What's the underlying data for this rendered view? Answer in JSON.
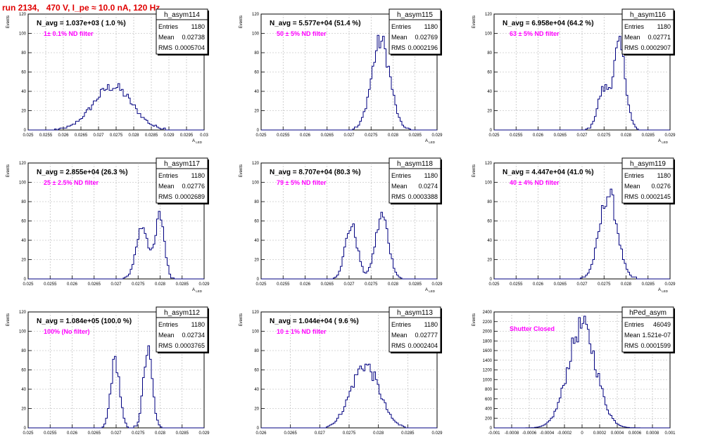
{
  "page_title": "run 2134,   470 V, I_pe ≈ 10.0 nA, 120 Hz",
  "colors": {
    "hist": "#000080",
    "annot": "#ff00ff",
    "title": "#e00000",
    "grid": "#b0b0b0"
  },
  "chart_data": [
    {
      "type": "histogram",
      "name": "h_asym114",
      "ylabel": "Events",
      "xlabel": "A_LED",
      "xlim": [
        0.025,
        0.03
      ],
      "ylim": [
        0,
        120
      ],
      "xticks": [
        "0.025",
        "0.0255",
        "0.026",
        "0.0265",
        "0.027",
        "0.0275",
        "0.028",
        "0.0285",
        "0.029",
        "0.0295",
        "0.03"
      ],
      "yticks": [
        "0",
        "20",
        "40",
        "60",
        "80",
        "100",
        "120"
      ],
      "navg": "N_avg = 1.037e+03 ( 1.0 %)",
      "note": "1± 0.1% ND filter",
      "stats": {
        "entries": "1180",
        "mean": "0.02738",
        "rms": "0.0005704"
      },
      "shape": {
        "peaks": [
          [
            0.0274,
            0.00055,
            45
          ]
        ]
      }
    },
    {
      "type": "histogram",
      "name": "h_asym115",
      "ylabel": "Events",
      "xlabel": "A_LED",
      "xlim": [
        0.025,
        0.029
      ],
      "ylim": [
        0,
        120
      ],
      "xticks": [
        "0.025",
        "0.0255",
        "0.026",
        "0.0265",
        "0.027",
        "0.0275",
        "0.028",
        "0.0285",
        "0.029"
      ],
      "yticks": [
        "0",
        "20",
        "40",
        "60",
        "80",
        "100",
        "120"
      ],
      "navg": "N_avg = 5.577e+04 (51.4 %)",
      "note": "50 ± 5% ND filter",
      "stats": {
        "entries": "1180",
        "mean": "0.02769",
        "rms": "0.0002196"
      },
      "shape": {
        "peaks": [
          [
            0.02772,
            0.00021,
            92
          ]
        ]
      }
    },
    {
      "type": "histogram",
      "name": "h_asym116",
      "ylabel": "Events",
      "xlabel": "A_LED",
      "xlim": [
        0.025,
        0.029
      ],
      "ylim": [
        0,
        120
      ],
      "xticks": [
        "0.025",
        "0.0255",
        "0.026",
        "0.0265",
        "0.027",
        "0.0275",
        "0.028",
        "0.0285",
        "0.029"
      ],
      "yticks": [
        "0",
        "20",
        "40",
        "60",
        "80",
        "100",
        "120"
      ],
      "navg": "N_avg = 6.958e+04 (64.2 %)",
      "note": "63 ± 5% ND filter",
      "stats": {
        "entries": "1180",
        "mean": "0.02771",
        "rms": "0.0002907"
      },
      "shape": {
        "peaks": [
          [
            0.02748,
            0.00013,
            40
          ],
          [
            0.02785,
            0.00014,
            86
          ]
        ]
      }
    },
    {
      "type": "histogram",
      "name": "h_asym117",
      "ylabel": "Events",
      "xlabel": "A_LED",
      "xlim": [
        0.025,
        0.029
      ],
      "ylim": [
        0,
        120
      ],
      "xticks": [
        "0.025",
        "0.0255",
        "0.026",
        "0.0265",
        "0.027",
        "0.0275",
        "0.028",
        "0.0285",
        "0.029"
      ],
      "yticks": [
        "0",
        "20",
        "40",
        "60",
        "80",
        "100",
        "120"
      ],
      "navg": "N_avg = 2.855e+04 (26.3 %)",
      "note": "25 ± 2.5% ND filter",
      "stats": {
        "entries": "1180",
        "mean": "0.02776",
        "rms": "0.0002689"
      },
      "shape": {
        "peaks": [
          [
            0.0276,
            0.00014,
            55
          ],
          [
            0.028,
            0.0001,
            65
          ]
        ]
      }
    },
    {
      "type": "histogram",
      "name": "h_asym118",
      "ylabel": "Events",
      "xlabel": "A_LED",
      "xlim": [
        0.025,
        0.029
      ],
      "ylim": [
        0,
        120
      ],
      "xticks": [
        "0.025",
        "0.0255",
        "0.026",
        "0.0265",
        "0.027",
        "0.0275",
        "0.028",
        "0.0285",
        "0.029"
      ],
      "yticks": [
        "0",
        "20",
        "40",
        "60",
        "80",
        "100",
        "120"
      ],
      "navg": "N_avg = 8.707e+04 (80.3 %)",
      "note": "79 ± 5% ND filter",
      "stats": {
        "entries": "1180",
        "mean": "0.0274",
        "rms": "0.0003388"
      },
      "shape": {
        "peaks": [
          [
            0.02705,
            0.00014,
            55
          ],
          [
            0.02775,
            0.00015,
            65
          ]
        ]
      }
    },
    {
      "type": "histogram",
      "name": "h_asym119",
      "ylabel": "Events",
      "xlabel": "A_LED",
      "xlim": [
        0.025,
        0.029
      ],
      "ylim": [
        0,
        120
      ],
      "xticks": [
        "0.025",
        "0.0255",
        "0.026",
        "0.0265",
        "0.027",
        "0.0275",
        "0.028",
        "0.0285",
        "0.029"
      ],
      "yticks": [
        "0",
        "20",
        "40",
        "60",
        "80",
        "100",
        "120"
      ],
      "navg": "N_avg = 4.447e+04 (41.0 %)",
      "note": "40 ± 4% ND filter",
      "stats": {
        "entries": "1180",
        "mean": "0.0276",
        "rms": "0.0002145"
      },
      "shape": {
        "peaks": [
          [
            0.0276,
            0.0002,
            88
          ]
        ]
      }
    },
    {
      "type": "histogram",
      "name": "h_asym112",
      "ylabel": "Events",
      "xlabel": "A_LED",
      "xlim": [
        0.025,
        0.029
      ],
      "ylim": [
        0,
        120
      ],
      "xticks": [
        "0.025",
        "0.0255",
        "0.026",
        "0.0265",
        "0.027",
        "0.0275",
        "0.028",
        "0.0285",
        "0.029"
      ],
      "yticks": [
        "0",
        "20",
        "40",
        "60",
        "80",
        "100",
        "120"
      ],
      "navg": "N_avg = 1.084e+05 (100.0 %)",
      "note": "100% (No filter)",
      "stats": {
        "entries": "1180",
        "mean": "0.02734",
        "rms": "0.0003765"
      },
      "shape": {
        "peaks": [
          [
            0.02698,
            0.0001,
            70
          ],
          [
            0.02772,
            0.0001,
            80
          ]
        ]
      }
    },
    {
      "type": "histogram",
      "name": "h_asym113",
      "ylabel": "Events",
      "xlabel": "A_LED",
      "xlim": [
        0.026,
        0.029
      ],
      "ylim": [
        0,
        120
      ],
      "xticks": [
        "0.026",
        "0.0265",
        "0.027",
        "0.0275",
        "0.028",
        "0.0285",
        "0.029"
      ],
      "yticks": [
        "0",
        "20",
        "40",
        "60",
        "80",
        "100",
        "120"
      ],
      "navg": "N_avg = 1.044e+04 ( 9.6 %)",
      "note": "10 ± 1% ND filter",
      "stats": {
        "entries": "1180",
        "mean": "0.02777",
        "rms": "0.0002404"
      },
      "shape": {
        "peaks": [
          [
            0.02777,
            0.00024,
            65
          ]
        ]
      }
    },
    {
      "type": "histogram",
      "name": "hPed_asym",
      "ylabel": "Events",
      "xlabel": "",
      "xlim": [
        -0.001,
        0.001
      ],
      "ylim": [
        0,
        2400
      ],
      "xticks": [
        "-0.001",
        "-0.0008",
        "-0.0006",
        "-0.0004",
        "-0.0002",
        "0",
        "0.0002",
        "0.0004",
        "0.0006",
        "0.0008",
        "0.001"
      ],
      "yticks": [
        "0",
        "200",
        "400",
        "600",
        "800",
        "1000",
        "1200",
        "1400",
        "1600",
        "1800",
        "2000",
        "2200",
        "2400"
      ],
      "navg": "",
      "note": "Shutter Closed",
      "stats": {
        "entries": "46049",
        "mean": "1.521e-07",
        "rms": "0.0001599"
      },
      "shape": {
        "peaks": [
          [
            0.0,
            0.00016,
            2100
          ]
        ]
      }
    }
  ]
}
